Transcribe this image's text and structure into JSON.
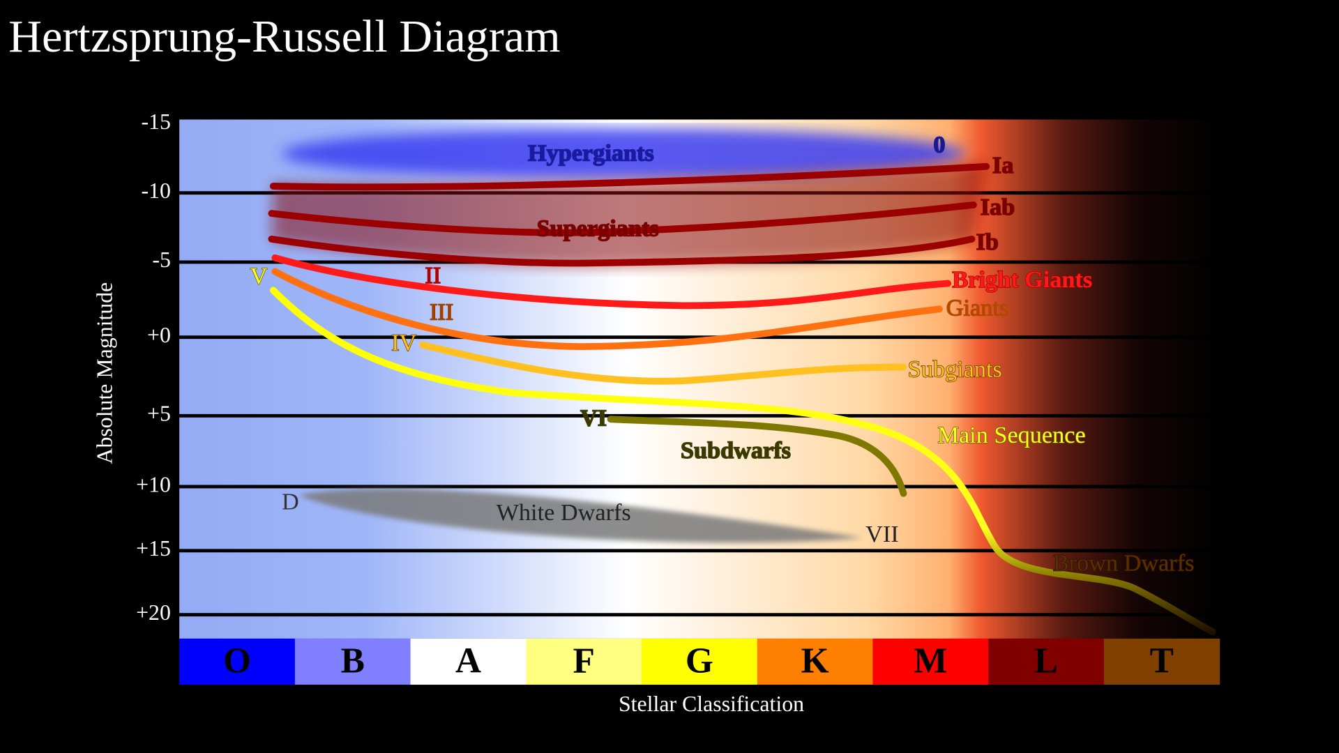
{
  "title": "Hertzsprung-Russell Diagram",
  "y_axis": {
    "label": "Absolute Magnitude",
    "ticks": [
      "-15",
      "-10",
      "-5",
      "+0",
      "+5",
      "+10",
      "+15",
      "+20"
    ]
  },
  "x_axis": {
    "label": "Stellar Classification",
    "classes": [
      {
        "label": "O",
        "color": "#0000ff"
      },
      {
        "label": "B",
        "color": "#8080ff"
      },
      {
        "label": "A",
        "color": "#ffffff"
      },
      {
        "label": "F",
        "color": "#ffff80"
      },
      {
        "label": "G",
        "color": "#ffff00"
      },
      {
        "label": "K",
        "color": "#ff8000"
      },
      {
        "label": "M",
        "color": "#ff0000"
      },
      {
        "label": "L",
        "color": "#800000"
      },
      {
        "label": "T",
        "color": "#804000"
      }
    ]
  },
  "regions": {
    "hypergiants": "Hypergiants",
    "supergiants": "Supergiants",
    "bright_giants": "Bright Giants",
    "giants": "Giants",
    "subgiants": "Subgiants",
    "main_sequence": "Main Sequence",
    "subdwarfs": "Subdwarfs",
    "white_dwarfs": "White Dwarfs",
    "brown_dwarfs": "Brown Dwarfs"
  },
  "luminosity_classes": {
    "c0": "0",
    "ia": "Ia",
    "iab": "Iab",
    "ib": "Ib",
    "ii": "II",
    "iii": "III",
    "iv": "IV",
    "v": "V",
    "vi": "VI",
    "vii": "VII",
    "d": "D"
  }
}
